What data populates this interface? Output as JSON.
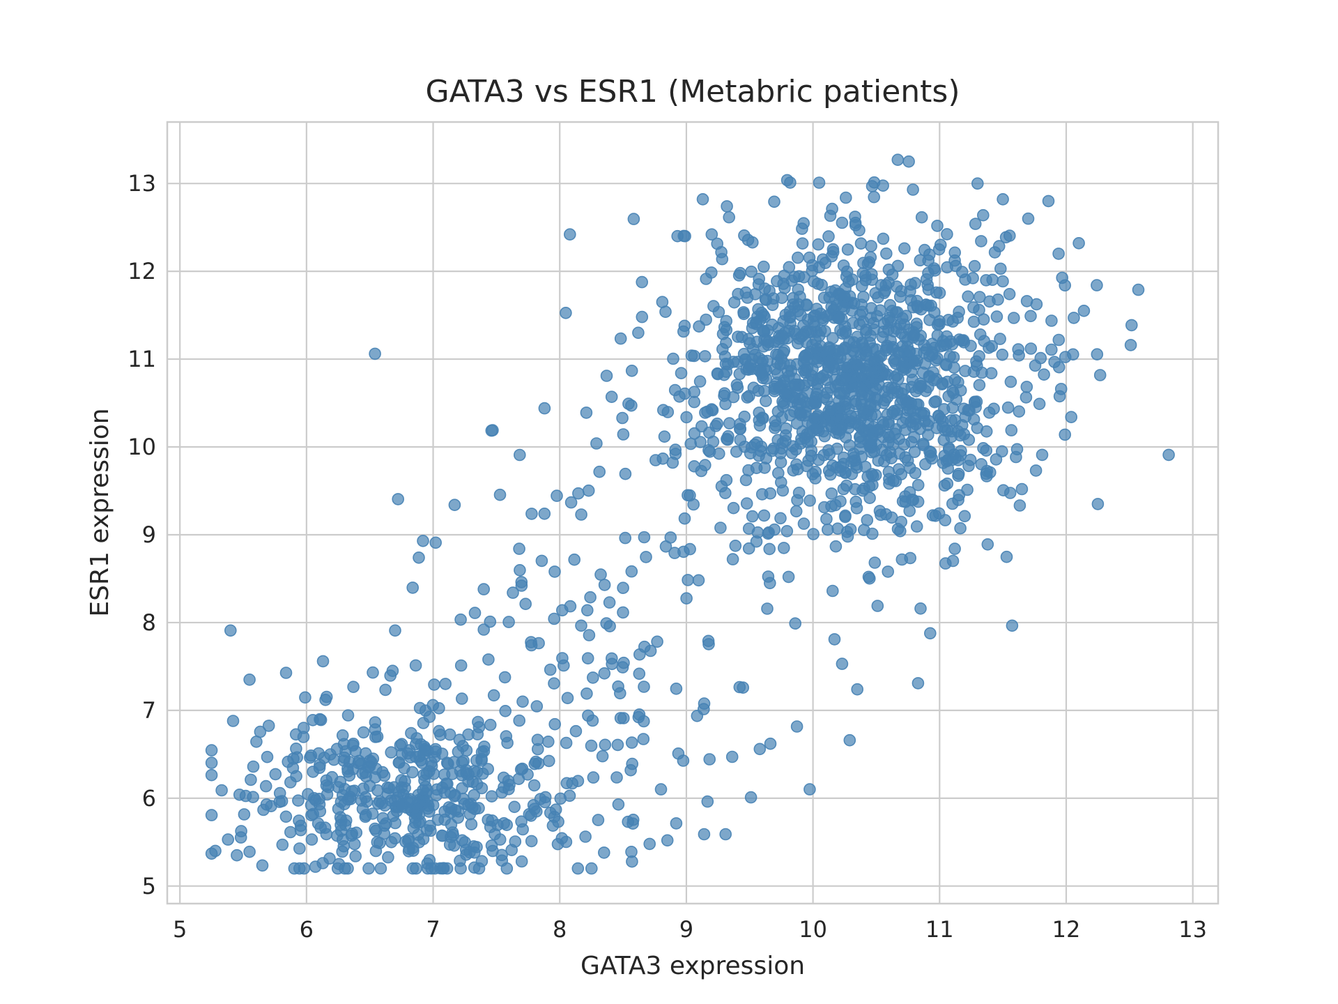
{
  "chart_data": {
    "type": "scatter",
    "title": "GATA3 vs ESR1 (Metabric patients)",
    "xlabel": "GATA3 expression",
    "ylabel": "ESR1 expression",
    "xlim": [
      4.9,
      13.2
    ],
    "ylim": [
      4.8,
      13.7
    ],
    "x_ticks": [
      "5",
      "6",
      "7",
      "8",
      "9",
      "10",
      "11",
      "12",
      "13"
    ],
    "y_ticks": [
      "5",
      "6",
      "7",
      "8",
      "9",
      "10",
      "11",
      "12",
      "13"
    ],
    "grid": true,
    "legend": "none",
    "point_color": "#4682b4",
    "point_alpha": 0.7,
    "n_points": 1904,
    "clusters": [
      {
        "mean_x": 6.8,
        "mean_y": 6.0,
        "sd_x": 0.6,
        "sd_y": 0.45,
        "weight": 0.24
      },
      {
        "mean_x": 8.3,
        "mean_y": 7.5,
        "sd_x": 0.75,
        "sd_y": 1.1,
        "weight": 0.08
      },
      {
        "mean_x": 10.3,
        "mean_y": 10.8,
        "sd_x": 0.65,
        "sd_y": 0.85,
        "weight": 0.68
      }
    ],
    "points": [
      [
        5.28,
        5.4
      ],
      [
        5.33,
        6.09
      ],
      [
        5.38,
        5.53
      ],
      [
        5.4,
        7.91
      ],
      [
        5.42,
        6.88
      ],
      [
        5.45,
        5.35
      ],
      [
        5.55,
        7.35
      ],
      [
        5.56,
        6.21
      ],
      [
        5.58,
        6.36
      ],
      [
        5.69,
        6.47
      ],
      [
        5.72,
        5.91
      ],
      [
        5.81,
        5.47
      ],
      [
        6.05,
        6.89
      ],
      [
        6.07,
        5.22
      ],
      [
        6.13,
        7.56
      ],
      [
        6.15,
        7.12
      ],
      [
        6.14,
        6.46
      ],
      [
        6.45,
        6.75
      ],
      [
        6.68,
        7.45
      ],
      [
        6.7,
        7.91
      ],
      [
        6.92,
        8.93
      ],
      [
        7.02,
        8.91
      ],
      [
        7.17,
        9.34
      ],
      [
        7.47,
        10.19
      ],
      [
        7.33,
        8.11
      ],
      [
        7.4,
        7.92
      ],
      [
        7.45,
        8.01
      ],
      [
        7.4,
        8.38
      ],
      [
        7.63,
        8.34
      ],
      [
        7.68,
        8.84
      ],
      [
        7.88,
        10.44
      ],
      [
        7.96,
        8.58
      ],
      [
        8.08,
        12.42
      ],
      [
        8.17,
        9.23
      ],
      [
        8.21,
        10.39
      ],
      [
        8.29,
        10.04
      ],
      [
        8.37,
        10.81
      ],
      [
        8.41,
        10.57
      ],
      [
        8.62,
        11.3
      ],
      [
        8.65,
        11.48
      ],
      [
        8.81,
        11.65
      ],
      [
        8.93,
        12.4
      ],
      [
        8.99,
        12.4
      ],
      [
        9.13,
        12.82
      ],
      [
        9.2,
        12.42
      ],
      [
        9.32,
        12.74
      ],
      [
        9.82,
        13.01
      ],
      [
        10.67,
        13.27
      ],
      [
        10.79,
        12.93
      ],
      [
        11.3,
        13.0
      ],
      [
        11.5,
        12.82
      ],
      [
        11.86,
        12.8
      ],
      [
        12.1,
        12.32
      ],
      [
        12.57,
        11.79
      ],
      [
        12.51,
        11.16
      ],
      [
        12.81,
        9.91
      ],
      [
        12.25,
        9.35
      ],
      [
        11.38,
        8.89
      ],
      [
        10.85,
        8.16
      ],
      [
        10.83,
        7.31
      ],
      [
        10.35,
        7.24
      ],
      [
        10.29,
        6.66
      ],
      [
        9.58,
        6.56
      ],
      [
        9.51,
        6.01
      ],
      [
        9.31,
        5.59
      ],
      [
        9.14,
        5.59
      ],
      [
        8.85,
        5.52
      ],
      [
        8.71,
        5.48
      ],
      [
        8.35,
        5.38
      ],
      [
        7.7,
        5.28
      ],
      [
        6.98,
        5.63
      ],
      [
        5.55,
        5.39
      ],
      [
        9.86,
        7.99
      ],
      [
        10.17,
        7.81
      ],
      [
        10.23,
        7.53
      ],
      [
        9.66,
        8.45
      ],
      [
        9.77,
        8.85
      ],
      [
        10.51,
        8.19
      ],
      [
        10.44,
        8.52
      ],
      [
        11.12,
        8.84
      ],
      [
        11.65,
        9.52
      ],
      [
        11.81,
        9.91
      ],
      [
        11.99,
        10.14
      ],
      [
        12.04,
        10.34
      ],
      [
        11.96,
        10.66
      ],
      [
        12.06,
        11.47
      ],
      [
        12.14,
        11.55
      ],
      [
        11.99,
        11.84
      ],
      [
        11.94,
        12.2
      ],
      [
        11.7,
        12.6
      ]
    ]
  }
}
